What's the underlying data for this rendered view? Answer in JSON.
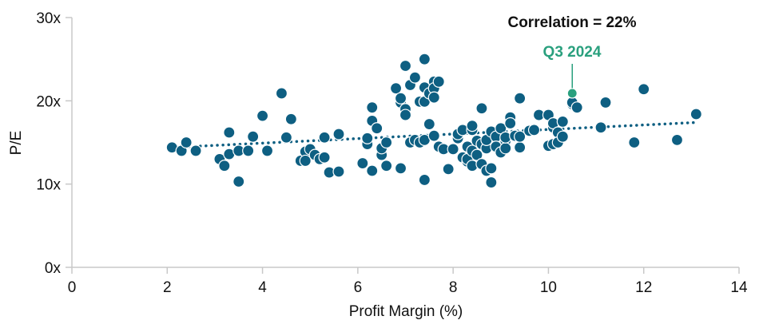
{
  "chart_data": {
    "type": "scatter",
    "xlabel": "Profit Margin (%)",
    "ylabel": "P/E",
    "xlim": [
      0,
      14
    ],
    "ylim": [
      0,
      30
    ],
    "x_ticks": [
      0,
      2,
      4,
      6,
      8,
      10,
      12,
      14
    ],
    "x_tick_labels": [
      "0",
      "2",
      "4",
      "6",
      "8",
      "10",
      "12",
      "14"
    ],
    "y_ticks": [
      0,
      10,
      20,
      30
    ],
    "y_tick_labels": [
      "0x",
      "10x",
      "20x",
      "30x"
    ],
    "grid": false,
    "annotation": "Correlation = 22%",
    "colors": {
      "points": "#0e5f82",
      "highlight": "#2aa07e",
      "text": "#111111",
      "axis": "#c8c8c8"
    },
    "trendline": {
      "style": "dotted",
      "x": [
        2.1,
        13.1
      ],
      "y": [
        14.4,
        17.4
      ]
    },
    "highlight": {
      "label": "Q3 2024",
      "x": 10.5,
      "y": 20.9
    },
    "points": [
      [
        2.1,
        14.4
      ],
      [
        2.3,
        14.0
      ],
      [
        2.4,
        15.0
      ],
      [
        2.6,
        14.0
      ],
      [
        3.1,
        13.0
      ],
      [
        3.2,
        12.2
      ],
      [
        3.3,
        13.6
      ],
      [
        3.3,
        16.2
      ],
      [
        3.5,
        14.0
      ],
      [
        3.5,
        10.3
      ],
      [
        3.7,
        14.0
      ],
      [
        3.8,
        15.7
      ],
      [
        4.0,
        18.2
      ],
      [
        4.1,
        14.0
      ],
      [
        4.4,
        20.9
      ],
      [
        4.5,
        15.6
      ],
      [
        4.6,
        17.8
      ],
      [
        4.8,
        12.8
      ],
      [
        4.9,
        13.9
      ],
      [
        4.9,
        12.8
      ],
      [
        5.0,
        14.2
      ],
      [
        5.1,
        13.5
      ],
      [
        5.2,
        13.0
      ],
      [
        5.3,
        13.2
      ],
      [
        5.3,
        15.6
      ],
      [
        5.4,
        11.4
      ],
      [
        5.6,
        16.0
      ],
      [
        5.6,
        11.5
      ],
      [
        6.1,
        12.5
      ],
      [
        6.2,
        14.8
      ],
      [
        6.2,
        15.5
      ],
      [
        6.3,
        17.6
      ],
      [
        6.3,
        19.2
      ],
      [
        6.3,
        11.6
      ],
      [
        6.4,
        16.7
      ],
      [
        6.5,
        13.5
      ],
      [
        6.5,
        14.3
      ],
      [
        6.6,
        12.2
      ],
      [
        6.6,
        15.0
      ],
      [
        6.8,
        21.5
      ],
      [
        6.9,
        19.8
      ],
      [
        6.9,
        20.3
      ],
      [
        7.0,
        24.2
      ],
      [
        7.0,
        19.0
      ],
      [
        7.0,
        18.3
      ],
      [
        7.1,
        21.9
      ],
      [
        7.1,
        15.0
      ],
      [
        7.2,
        22.8
      ],
      [
        7.2,
        15.3
      ],
      [
        7.3,
        19.9
      ],
      [
        7.3,
        15.0
      ],
      [
        7.4,
        25.0
      ],
      [
        7.4,
        21.6
      ],
      [
        7.4,
        19.9
      ],
      [
        7.4,
        15.3
      ],
      [
        7.5,
        20.9
      ],
      [
        7.5,
        17.2
      ],
      [
        7.6,
        22.3
      ],
      [
        7.6,
        21.5
      ],
      [
        7.6,
        20.4
      ],
      [
        7.6,
        15.8
      ],
      [
        7.7,
        22.3
      ],
      [
        7.7,
        14.5
      ],
      [
        6.9,
        11.9
      ],
      [
        7.4,
        10.5
      ],
      [
        7.9,
        11.8
      ],
      [
        7.8,
        14.2
      ],
      [
        8.0,
        14.2
      ],
      [
        8.1,
        15.5
      ],
      [
        8.1,
        16.0
      ],
      [
        8.2,
        16.5
      ],
      [
        8.2,
        13.2
      ],
      [
        8.3,
        12.7
      ],
      [
        8.3,
        13.0
      ],
      [
        8.3,
        14.5
      ],
      [
        8.4,
        14.0
      ],
      [
        8.4,
        16.5
      ],
      [
        8.4,
        17.0
      ],
      [
        8.4,
        12.2
      ],
      [
        8.5,
        15.2
      ],
      [
        8.5,
        13.5
      ],
      [
        8.6,
        19.1
      ],
      [
        8.6,
        14.8
      ],
      [
        8.6,
        12.4
      ],
      [
        8.7,
        11.6
      ],
      [
        8.7,
        14.3
      ],
      [
        8.7,
        15.3
      ],
      [
        8.8,
        16.3
      ],
      [
        8.8,
        11.9
      ],
      [
        8.8,
        10.2
      ],
      [
        8.9,
        15.7
      ],
      [
        8.9,
        14.5
      ],
      [
        9.0,
        13.8
      ],
      [
        9.0,
        16.7
      ],
      [
        9.1,
        15.2
      ],
      [
        9.1,
        14.3
      ],
      [
        9.1,
        15.6
      ],
      [
        9.2,
        18.0
      ],
      [
        9.2,
        17.3
      ],
      [
        9.3,
        15.8
      ],
      [
        9.4,
        14.4
      ],
      [
        9.4,
        15.7
      ],
      [
        9.4,
        20.3
      ],
      [
        9.6,
        16.4
      ],
      [
        9.7,
        16.5
      ],
      [
        9.8,
        18.3
      ],
      [
        10.0,
        18.3
      ],
      [
        10.0,
        14.6
      ],
      [
        10.1,
        16.8
      ],
      [
        10.1,
        17.3
      ],
      [
        10.1,
        14.8
      ],
      [
        10.2,
        16.2
      ],
      [
        10.2,
        15.0
      ],
      [
        10.3,
        17.5
      ],
      [
        10.3,
        15.7
      ],
      [
        10.5,
        19.6
      ],
      [
        10.5,
        19.8
      ],
      [
        10.6,
        19.2
      ],
      [
        11.1,
        16.8
      ],
      [
        11.2,
        19.8
      ],
      [
        11.8,
        15.0
      ],
      [
        12.0,
        21.4
      ],
      [
        12.7,
        15.3
      ],
      [
        13.1,
        18.4
      ]
    ]
  }
}
